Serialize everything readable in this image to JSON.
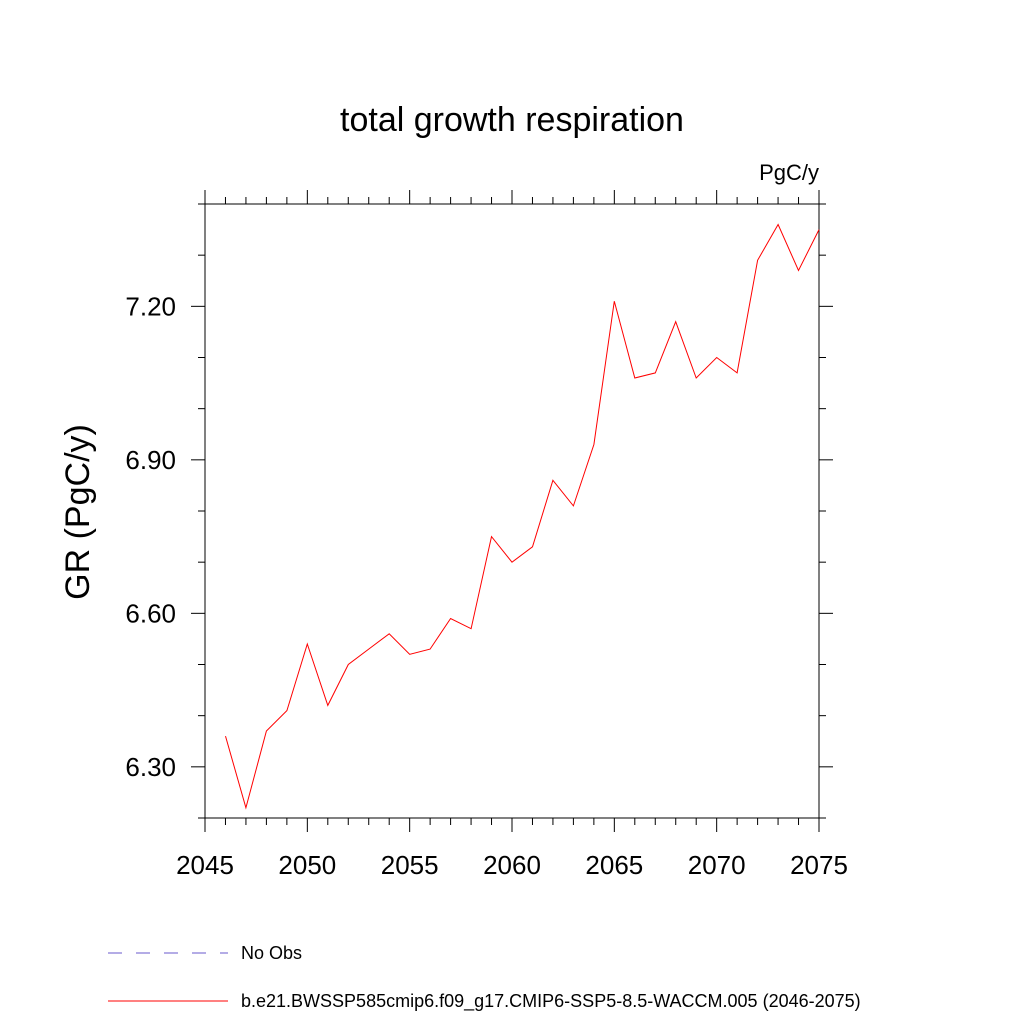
{
  "chart_data": {
    "type": "line",
    "title": "total growth respiration",
    "units": "PgC/y",
    "xlabel": "",
    "ylabel": "GR  (PgC/y)",
    "xlim": [
      2045,
      2075
    ],
    "ylim": [
      6.2,
      7.4
    ],
    "x_ticks": [
      2045,
      2050,
      2055,
      2060,
      2065,
      2070,
      2075
    ],
    "x_tick_labels": [
      "2045",
      "2050",
      "2055",
      "2060",
      "2065",
      "2070",
      "2075"
    ],
    "y_ticks": [
      6.3,
      6.6,
      6.9,
      7.2
    ],
    "y_tick_labels": [
      "6.30",
      "6.60",
      "6.90",
      "7.20"
    ],
    "grid": false,
    "legend_position": "bottom",
    "series": [
      {
        "name": "b.e21.BWSSP585cmip6.f09_g17.CMIP6-SSP5-8.5-WACCM.005 (2046-2075)",
        "color": "#ff0000",
        "style": "solid",
        "x": [
          2046,
          2047,
          2048,
          2049,
          2050,
          2051,
          2052,
          2053,
          2054,
          2055,
          2056,
          2057,
          2058,
          2059,
          2060,
          2061,
          2062,
          2063,
          2064,
          2065,
          2066,
          2067,
          2068,
          2069,
          2070,
          2071,
          2072,
          2073,
          2074,
          2075
        ],
        "y": [
          6.36,
          6.22,
          6.37,
          6.41,
          6.54,
          6.42,
          6.5,
          6.53,
          6.56,
          6.52,
          6.53,
          6.59,
          6.57,
          6.75,
          6.7,
          6.73,
          6.86,
          6.81,
          6.93,
          7.21,
          7.06,
          7.07,
          7.17,
          7.06,
          7.1,
          7.07,
          7.29,
          7.36,
          7.27,
          7.35
        ]
      }
    ],
    "legend": [
      {
        "label": "No Obs",
        "color": "#6a5acd",
        "style": "dashed"
      },
      {
        "label": "b.e21.BWSSP585cmip6.f09_g17.CMIP6-SSP5-8.5-WACCM.005 (2046-2075)",
        "color": "#ff0000",
        "style": "solid"
      }
    ]
  }
}
